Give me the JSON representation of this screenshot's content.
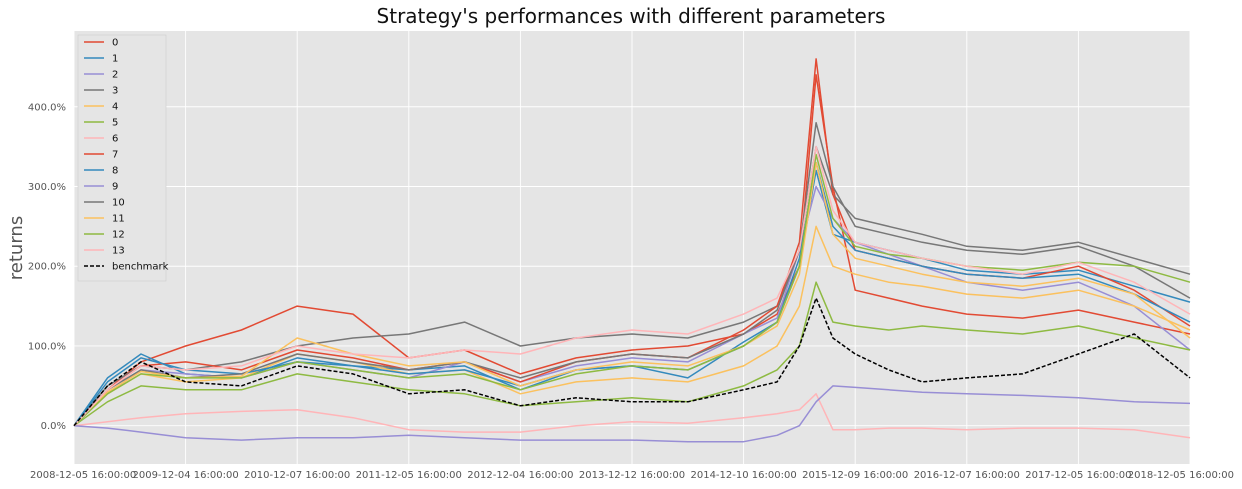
{
  "chart_data": {
    "type": "line",
    "title": "Strategy's performances with different parameters",
    "xlabel": "",
    "ylabel": "returns",
    "ylim": [
      -48,
      495
    ],
    "yticks": [
      0,
      100,
      200,
      300,
      400
    ],
    "ytick_labels": [
      "0.0%",
      "100.0%",
      "200.0%",
      "300.0%",
      "400.0%"
    ],
    "xlim": [
      0,
      10
    ],
    "xticks": [
      0,
      1,
      2,
      3,
      4,
      5,
      6,
      7,
      8,
      9,
      10
    ],
    "xtick_labels": [
      "2008-12-05 16:00:00",
      "2009-12-04 16:00:00",
      "2010-12-07 16:00:00",
      "2011-12-05 16:00:00",
      "2012-12-04 16:00:00",
      "2013-12-12 16:00:00",
      "2014-12-10 16:00:00",
      "2015-12-09 16:00:00",
      "2016-12-07 16:00:00",
      "2017-12-05 16:00:00",
      "2018-12-05 16:00:00"
    ],
    "grid": true,
    "legend_position": "top-left",
    "x": [
      0,
      0.3,
      0.6,
      1.0,
      1.5,
      2.0,
      2.5,
      3.0,
      3.5,
      4.0,
      4.5,
      5.0,
      5.5,
      6.0,
      6.3,
      6.5,
      6.65,
      6.8,
      7.0,
      7.3,
      7.6,
      8.0,
      8.5,
      9.0,
      9.5,
      10.0
    ],
    "series": [
      {
        "name": "0",
        "color": "#e24a33",
        "dash": false,
        "values": [
          0,
          45,
          80,
          100,
          120,
          150,
          140,
          85,
          95,
          65,
          85,
          95,
          100,
          115,
          140,
          200,
          440,
          300,
          170,
          160,
          150,
          140,
          135,
          145,
          130,
          115
        ]
      },
      {
        "name": "1",
        "color": "#348abd",
        "dash": false,
        "values": [
          0,
          60,
          90,
          65,
          60,
          85,
          75,
          70,
          75,
          45,
          70,
          75,
          60,
          105,
          130,
          200,
          320,
          240,
          230,
          220,
          210,
          195,
          190,
          195,
          175,
          155
        ]
      },
      {
        "name": "2",
        "color": "#988ed5",
        "dash": false,
        "values": [
          0,
          40,
          70,
          65,
          60,
          80,
          70,
          60,
          80,
          55,
          75,
          85,
          80,
          115,
          135,
          220,
          300,
          260,
          230,
          215,
          200,
          180,
          170,
          180,
          150,
          95
        ]
      },
      {
        "name": "3",
        "color": "#777777",
        "dash": false,
        "values": [
          0,
          50,
          75,
          70,
          80,
          100,
          110,
          115,
          130,
          100,
          110,
          115,
          110,
          130,
          150,
          220,
          350,
          290,
          260,
          250,
          240,
          225,
          220,
          230,
          210,
          190
        ]
      },
      {
        "name": "4",
        "color": "#fbc15e",
        "dash": false,
        "values": [
          0,
          40,
          65,
          55,
          60,
          90,
          80,
          65,
          70,
          40,
          55,
          60,
          55,
          75,
          100,
          150,
          250,
          200,
          190,
          180,
          175,
          165,
          160,
          170,
          150,
          120
        ]
      },
      {
        "name": "5",
        "color": "#8eba42",
        "dash": false,
        "values": [
          0,
          30,
          50,
          45,
          45,
          65,
          55,
          45,
          40,
          25,
          30,
          35,
          30,
          50,
          70,
          100,
          180,
          130,
          125,
          120,
          125,
          120,
          115,
          125,
          110,
          95
        ]
      },
      {
        "name": "6",
        "color": "#ffb5b8",
        "dash": false,
        "values": [
          0,
          5,
          10,
          15,
          18,
          20,
          10,
          -5,
          -8,
          -8,
          0,
          5,
          3,
          10,
          15,
          20,
          40,
          -5,
          -5,
          -3,
          -3,
          -5,
          -3,
          -3,
          -5,
          -15
        ]
      },
      {
        "name": "7",
        "color": "#e24a33",
        "dash": false,
        "values": [
          0,
          45,
          75,
          80,
          70,
          95,
          85,
          70,
          80,
          55,
          80,
          90,
          85,
          120,
          150,
          230,
          460,
          290,
          220,
          210,
          200,
          190,
          185,
          200,
          170,
          125
        ]
      },
      {
        "name": "8",
        "color": "#348abd",
        "dash": false,
        "values": [
          0,
          55,
          85,
          70,
          65,
          80,
          75,
          65,
          70,
          50,
          70,
          75,
          70,
          100,
          130,
          210,
          330,
          250,
          220,
          210,
          200,
          190,
          185,
          190,
          165,
          130
        ]
      },
      {
        "name": "9",
        "color": "#988ed5",
        "dash": false,
        "values": [
          0,
          -3,
          -8,
          -15,
          -18,
          -15,
          -15,
          -12,
          -15,
          -18,
          -18,
          -18,
          -20,
          -20,
          -12,
          0,
          30,
          50,
          48,
          45,
          42,
          40,
          38,
          35,
          30,
          28
        ]
      },
      {
        "name": "10",
        "color": "#777777",
        "dash": false,
        "values": [
          0,
          45,
          70,
          60,
          65,
          90,
          80,
          70,
          80,
          60,
          80,
          90,
          85,
          115,
          145,
          220,
          380,
          300,
          250,
          240,
          230,
          220,
          215,
          225,
          200,
          160
        ]
      },
      {
        "name": "11",
        "color": "#fbc15e",
        "dash": false,
        "values": [
          0,
          42,
          68,
          60,
          62,
          110,
          90,
          75,
          80,
          50,
          70,
          80,
          75,
          100,
          125,
          190,
          330,
          240,
          210,
          200,
          190,
          180,
          175,
          185,
          165,
          110
        ]
      },
      {
        "name": "12",
        "color": "#8eba42",
        "dash": false,
        "values": [
          0,
          40,
          65,
          60,
          60,
          80,
          70,
          60,
          65,
          45,
          65,
          75,
          70,
          100,
          130,
          200,
          340,
          260,
          225,
          215,
          210,
          200,
          195,
          205,
          200,
          180
        ]
      },
      {
        "name": "13",
        "color": "#ffb5b8",
        "dash": false,
        "values": [
          0,
          45,
          75,
          70,
          75,
          100,
          90,
          85,
          95,
          90,
          110,
          120,
          115,
          140,
          160,
          220,
          350,
          270,
          230,
          220,
          210,
          200,
          190,
          205,
          180,
          140
        ]
      },
      {
        "name": "benchmark",
        "color": "#000000",
        "dash": true,
        "values": [
          0,
          50,
          80,
          55,
          50,
          75,
          65,
          40,
          45,
          25,
          35,
          30,
          30,
          45,
          55,
          100,
          160,
          110,
          90,
          70,
          55,
          60,
          65,
          90,
          115,
          60
        ]
      }
    ]
  }
}
